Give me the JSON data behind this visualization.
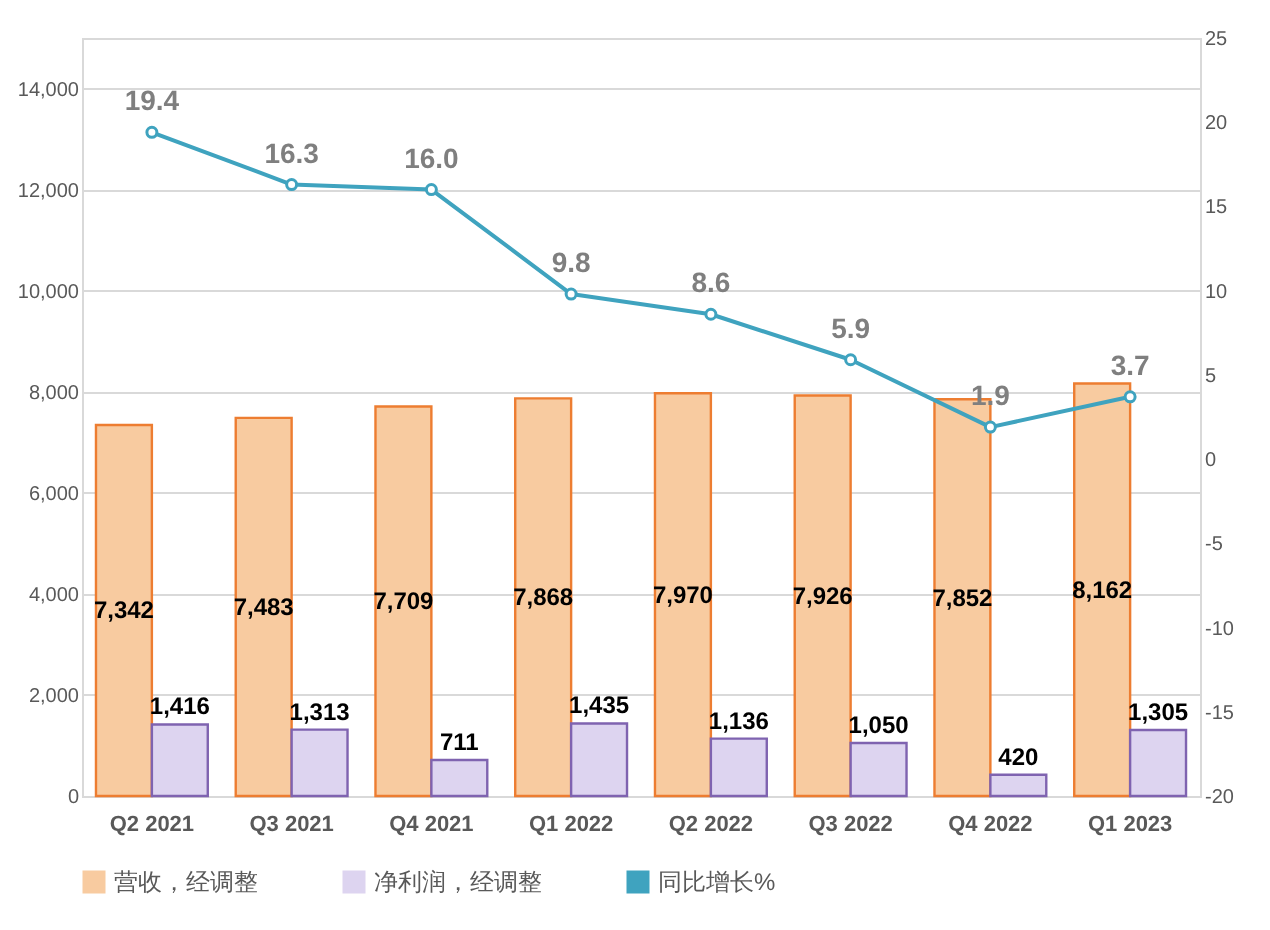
{
  "chart_data": {
    "type": "bar",
    "categories": [
      "Q2 2021",
      "Q3 2021",
      "Q4 2021",
      "Q1 2022",
      "Q2 2022",
      "Q3 2022",
      "Q4 2022",
      "Q1 2023"
    ],
    "series": [
      {
        "name": "营收，经调整",
        "color": "#f8cba0",
        "values": [
          7342,
          7483,
          7709,
          7868,
          7970,
          7926,
          7852,
          8162
        ],
        "value_labels": [
          "7,342",
          "7,483",
          "7,709",
          "7,868",
          "7,970",
          "7,926",
          "7,852",
          "8,162"
        ]
      },
      {
        "name": "净利润，经调整",
        "color": "#ddd4f0",
        "values": [
          1416,
          1313,
          711,
          1435,
          1136,
          1050,
          420,
          1305
        ],
        "value_labels": [
          "1,416",
          "1,313",
          "711",
          "1,435",
          "1,136",
          "1,050",
          "420",
          "1,305"
        ]
      },
      {
        "name": "同比增长%",
        "color": "#3fa3bf",
        "type": "line",
        "axis": "y2",
        "marker": "circle",
        "values": [
          19.4,
          16.3,
          16.0,
          9.8,
          8.6,
          5.9,
          1.9,
          3.7
        ],
        "value_labels": [
          "19.4",
          "16.3",
          "16.0",
          "9.8",
          "8.6",
          "5.9",
          "1.9",
          "3.7"
        ]
      }
    ],
    "ylim": [
      0,
      15000
    ],
    "yticks": [
      0,
      {
        "value": 2000,
        "label": "2,000"
      },
      {
        "value": 4000,
        "label": "4,000"
      },
      {
        "value": 6000,
        "label": "6,000"
      },
      {
        "value": 8000,
        "label": "8,000"
      },
      {
        "value": 10000,
        "label": "10,000"
      },
      {
        "value": 12000,
        "label": "12,000"
      },
      {
        "value": 14000,
        "label": "14,000"
      }
    ],
    "y2lim": [
      -20,
      25
    ],
    "y2ticks": [
      -20,
      -15,
      -10,
      -5,
      0,
      5,
      10,
      15,
      20,
      25
    ],
    "grid": "y",
    "legend": "bottom"
  }
}
